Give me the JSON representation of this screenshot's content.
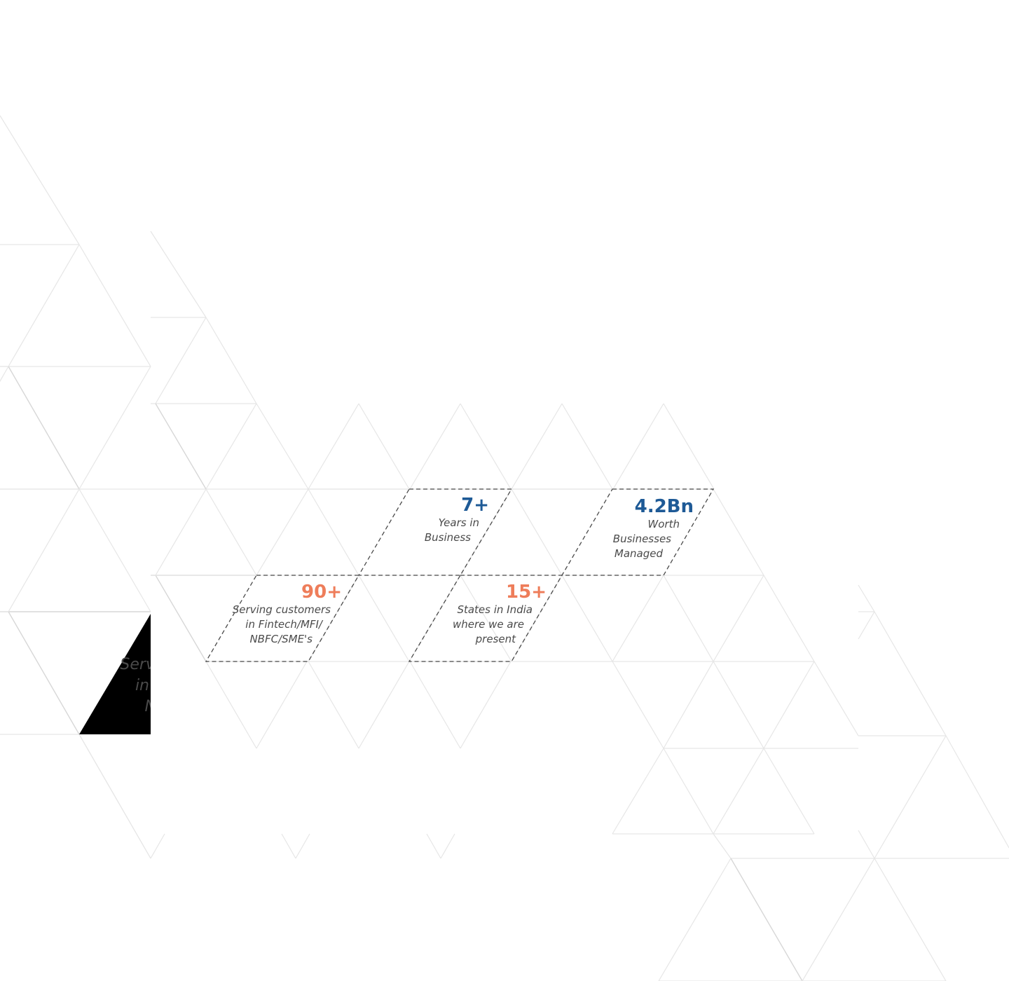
{
  "stats": [
    {
      "value": "7+",
      "lines": [
        "Years in",
        "Business"
      ],
      "color": "#1e5a96"
    },
    {
      "value": "4.2Bn",
      "lines": [
        "Worth",
        "Businesses",
        "Managed"
      ],
      "color": "#1e5a96"
    },
    {
      "value": "90+",
      "lines": [
        "Serving customers",
        "in Fintech/MFI/",
        "NBFC/SME's"
      ],
      "color": "#ee7d5a"
    },
    {
      "value": "15+",
      "lines": [
        "States in India",
        "where we are",
        "present"
      ],
      "color": "#ee7d5a"
    }
  ],
  "ghost_fragment": {
    "lines": [
      "Serv",
      "in",
      "N"
    ]
  }
}
